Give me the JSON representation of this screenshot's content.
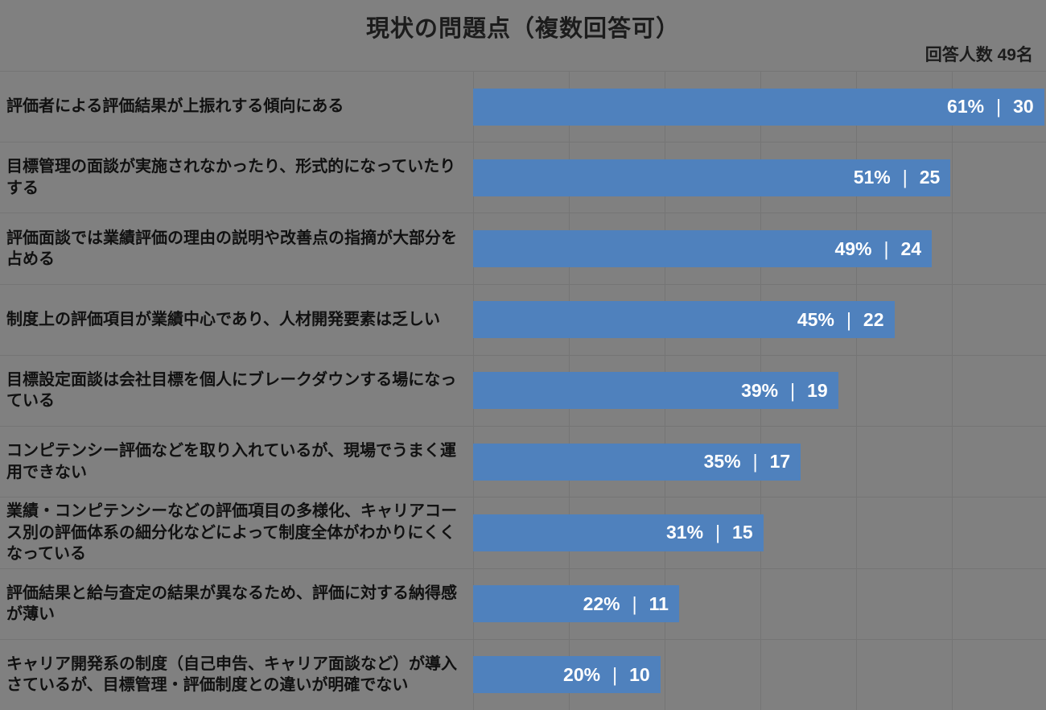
{
  "title": "現状の問題点（複数回答可）",
  "respondents_note": "回答人数 49名",
  "separator": "|",
  "chart_data": {
    "type": "bar",
    "orientation": "horizontal",
    "title": "現状の問題点（複数回答可）",
    "annotation": "回答人数 49名",
    "respondents_total": 49,
    "categories": [
      "評価者による評価結果が上振れする傾向にある",
      "目標管理の面談が実施されなかったり、形式的になっていたりする",
      "評価面談では業績評価の理由の説明や改善点の指摘が大部分を占める",
      "制度上の評価項目が業績中心であり、人材開発要素は乏しい",
      "目標設定面談は会社目標を個人にブレークダウンする場になっている",
      "コンピテンシー評価などを取り入れているが、現場でうまく運用できない",
      "業績・コンピテンシーなどの評価項目の多様化、キャリアコース別の評価体系の細分化などによって制度全体がわかりにくくなっている",
      "評価結果と給与査定の結果が異なるため、評価に対する納得感が薄い",
      "キャリア開発系の制度（自己申告、キャリア面談など）が導入さているが、目標管理・評価制度との違いが明確でない"
    ],
    "values_percent": [
      61,
      51,
      49,
      45,
      39,
      35,
      31,
      22,
      20
    ],
    "values_count": [
      30,
      25,
      24,
      22,
      19,
      17,
      15,
      11,
      10
    ],
    "xlim": [
      0,
      61.2
    ],
    "grid": true,
    "legend": false,
    "bar_color": "#4F81BD",
    "background_color": "#808080",
    "bar_text_color": "#FFFFFF"
  },
  "rows": [
    {
      "label": "評価者による評価結果が上振れする傾向にある",
      "percent_label": "61%",
      "count_label": "30"
    },
    {
      "label": "目標管理の面談が実施されなかったり、形式的になっていたりする",
      "percent_label": "51%",
      "count_label": "25"
    },
    {
      "label": "評価面談では業績評価の理由の説明や改善点の指摘が大部分を占める",
      "percent_label": "49%",
      "count_label": "24"
    },
    {
      "label": "制度上の評価項目が業績中心であり、人材開発要素は乏しい",
      "percent_label": "45%",
      "count_label": "22"
    },
    {
      "label": "目標設定面談は会社目標を個人にブレークダウンする場になっている",
      "percent_label": "39%",
      "count_label": "19"
    },
    {
      "label": "コンピテンシー評価などを取り入れているが、現場でうまく運用できない",
      "percent_label": "35%",
      "count_label": "17"
    },
    {
      "label": "業績・コンピテンシーなどの評価項目の多様化、キャリアコース別の評価体系の細分化などによって制度全体がわかりにくくなっている",
      "percent_label": "31%",
      "count_label": "15"
    },
    {
      "label": "評価結果と給与査定の結果が異なるため、評価に対する納得感が薄い",
      "percent_label": "22%",
      "count_label": "11"
    },
    {
      "label": "キャリア開発系の制度（自己申告、キャリア面談など）が導入さているが、目標管理・評価制度との違いが明確でない",
      "percent_label": "20%",
      "count_label": "10"
    }
  ]
}
